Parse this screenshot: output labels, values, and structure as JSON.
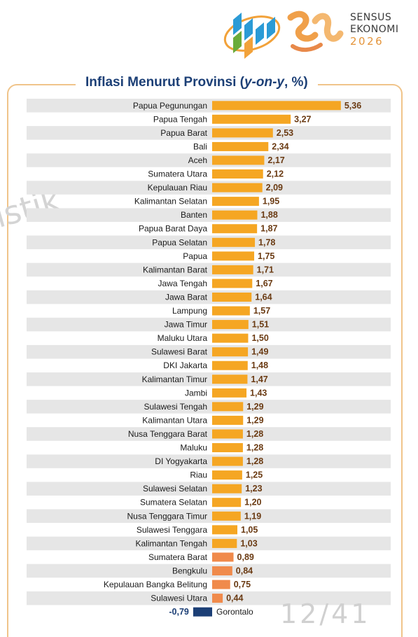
{
  "logo": {
    "bps_icon": "bps-logo-icon",
    "se_icon": "sensus-ekonomi-logo-icon",
    "line1": "SENSUS",
    "line2": "EKONOMI",
    "year": "2026"
  },
  "watermark": "istik",
  "page_number": "12/41",
  "colors": {
    "bar_orange": "#f5a623",
    "bar_salmon": "#f08a4b",
    "bar_negative": "#1c3f76",
    "row_stripe": "#e6e6e6",
    "frame": "#f0c48a",
    "title": "#1c3f76"
  },
  "chart_data": {
    "type": "bar",
    "orientation": "horizontal",
    "title_main": "Inflasi Menurut Provinsi (",
    "title_italic": "y-on-y",
    "title_end": ", %)",
    "categories": [
      "Papua Pegunungan",
      "Papua Tengah",
      "Papua Barat",
      "Bali",
      "Aceh",
      "Sumatera Utara",
      "Kepulauan Riau",
      "Kalimantan Selatan",
      "Banten",
      "Papua Barat Daya",
      "Papua Selatan",
      "Papua",
      "Kalimantan Barat",
      "Jawa Tengah",
      "Jawa Barat",
      "Lampung",
      "Jawa Timur",
      "Maluku Utara",
      "Sulawesi Barat",
      "DKI Jakarta",
      "Kalimantan Timur",
      "Jambi",
      "Sulawesi Tengah",
      "Kalimantan Utara",
      "Nusa Tenggara Barat",
      "Maluku",
      "DI Yogyakarta",
      "Riau",
      "Sulawesi Selatan",
      "Sumatera Selatan",
      "Nusa Tenggara Timur",
      "Sulawesi Tenggara",
      "Kalimantan Tengah",
      "Sumatera Barat",
      "Bengkulu",
      "Kepulauan Bangka Belitung",
      "Sulawesi Utara",
      "Gorontalo"
    ],
    "values": [
      5.36,
      3.27,
      2.53,
      2.34,
      2.17,
      2.12,
      2.09,
      1.95,
      1.88,
      1.87,
      1.78,
      1.75,
      1.71,
      1.67,
      1.64,
      1.57,
      1.51,
      1.5,
      1.49,
      1.48,
      1.47,
      1.43,
      1.29,
      1.29,
      1.28,
      1.28,
      1.28,
      1.25,
      1.23,
      1.2,
      1.19,
      1.05,
      1.03,
      0.89,
      0.84,
      0.75,
      0.44,
      -0.79
    ],
    "value_labels": [
      "5,36",
      "3,27",
      "2,53",
      "2,34",
      "2,17",
      "2,12",
      "2,09",
      "1,95",
      "1,88",
      "1,87",
      "1,78",
      "1,75",
      "1,71",
      "1,67",
      "1,64",
      "1,57",
      "1,51",
      "1,50",
      "1,49",
      "1,48",
      "1,47",
      "1,43",
      "1,29",
      "1,29",
      "1,28",
      "1,28",
      "1,28",
      "1,25",
      "1,23",
      "1,20",
      "1,19",
      "1,05",
      "1,03",
      "0,89",
      "0,84",
      "0,75",
      "0,44",
      "-0,79"
    ],
    "xlim": [
      -0.79,
      5.36
    ],
    "grid": false,
    "legend": "none"
  }
}
